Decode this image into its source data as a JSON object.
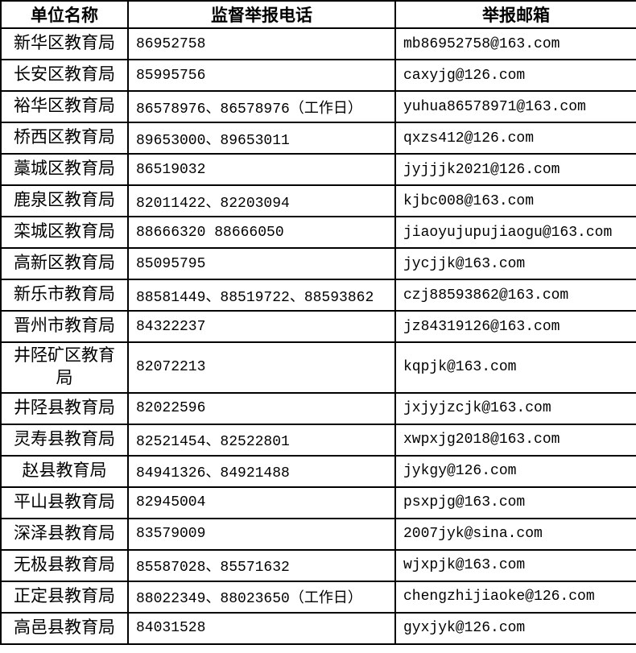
{
  "colors": {
    "background": "#ffffff",
    "border": "#000000",
    "text": "#000000"
  },
  "table": {
    "columns": [
      {
        "key": "unit",
        "label": "单位名称"
      },
      {
        "key": "phone",
        "label": "监督举报电话"
      },
      {
        "key": "email",
        "label": "举报邮箱"
      }
    ],
    "rows": [
      {
        "unit": "新华区教育局",
        "phone": "86952758",
        "email": "mb86952758@163.com"
      },
      {
        "unit": "长安区教育局",
        "phone": "85995756",
        "email": "caxyjg@126.com"
      },
      {
        "unit": "裕华区教育局",
        "phone": "86578976、86578976（工作日）",
        "email": "yuhua86578971@163.com"
      },
      {
        "unit": "桥西区教育局",
        "phone": "89653000、89653011",
        "email": "qxzs412@126.com"
      },
      {
        "unit": "藁城区教育局",
        "phone": "86519032",
        "email": "jyjjjk2021@126.com"
      },
      {
        "unit": "鹿泉区教育局",
        "phone": "82011422、82203094",
        "email": "kjbc008@163.com"
      },
      {
        "unit": "栾城区教育局",
        "phone": "88666320 88666050",
        "email": "jiaoyujupujiaogu@163.com"
      },
      {
        "unit": "高新区教育局",
        "phone": "85095795",
        "email": "jycjjk@163.com"
      },
      {
        "unit": "新乐市教育局",
        "phone": "88581449、88519722、88593862",
        "email": "czj88593862@163.com"
      },
      {
        "unit": "晋州市教育局",
        "phone": "84322237",
        "email": "jz84319126@163.com"
      },
      {
        "unit": "井陉矿区教育局",
        "phone": "82072213",
        "email": "kqpjk@163.com"
      },
      {
        "unit": "井陉县教育局",
        "phone": "82022596",
        "email": "jxjyjzcjk@163.com"
      },
      {
        "unit": "灵寿县教育局",
        "phone": "82521454、82522801",
        "email": "xwpxjg2018@163.com"
      },
      {
        "unit": "赵县教育局",
        "phone": "84941326、84921488",
        "email": "jykgy@126.com"
      },
      {
        "unit": "平山县教育局",
        "phone": "82945004",
        "email": "psxpjg@163.com"
      },
      {
        "unit": "深泽县教育局",
        "phone": "83579009",
        "email": "2007jyk@sina.com"
      },
      {
        "unit": "无极县教育局",
        "phone": "85587028、85571632",
        "email": "wjxpjk@163.com"
      },
      {
        "unit": "正定县教育局",
        "phone": "88022349、88023650（工作日）",
        "email": "chengzhijiaoke@126.com"
      },
      {
        "unit": "高邑县教育局",
        "phone": "84031528",
        "email": "gyxjyk@126.com"
      }
    ]
  }
}
